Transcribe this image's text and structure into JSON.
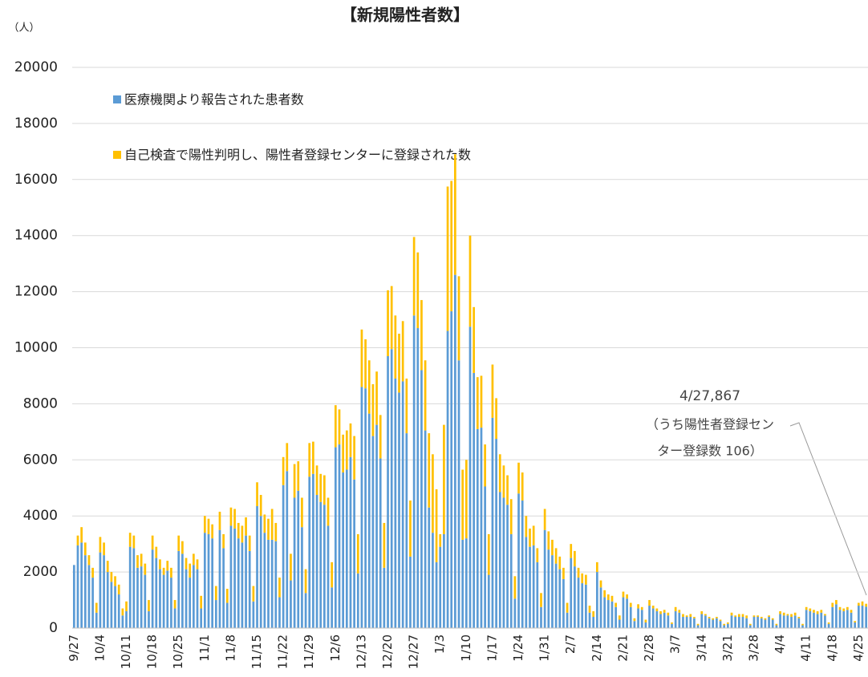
{
  "chart_data": {
    "type": "bar",
    "stacked": true,
    "title": "【新規陽性者数】",
    "y_label": "（人）",
    "categories": [
      "9/27",
      null,
      null,
      null,
      null,
      null,
      null,
      "10/4",
      null,
      null,
      null,
      null,
      null,
      null,
      "10/11",
      null,
      null,
      null,
      null,
      null,
      null,
      "10/18",
      null,
      null,
      null,
      null,
      null,
      null,
      "10/25",
      null,
      null,
      null,
      null,
      null,
      null,
      "11/1",
      null,
      null,
      null,
      null,
      null,
      null,
      "11/8",
      null,
      null,
      null,
      null,
      null,
      null,
      "11/15",
      null,
      null,
      null,
      null,
      null,
      null,
      "11/22",
      null,
      null,
      null,
      null,
      null,
      null,
      "11/29",
      null,
      null,
      null,
      null,
      null,
      null,
      "12/6",
      null,
      null,
      null,
      null,
      null,
      null,
      "12/13",
      null,
      null,
      null,
      null,
      null,
      null,
      "12/20",
      null,
      null,
      null,
      null,
      null,
      null,
      "12/27",
      null,
      null,
      null,
      null,
      null,
      null,
      "1/3",
      null,
      null,
      null,
      null,
      null,
      null,
      "1/10",
      null,
      null,
      null,
      null,
      null,
      null,
      "1/17",
      null,
      null,
      null,
      null,
      null,
      null,
      "1/24",
      null,
      null,
      null,
      null,
      null,
      null,
      "1/31",
      null,
      null,
      null,
      null,
      null,
      null,
      "2/7",
      null,
      null,
      null,
      null,
      null,
      null,
      "2/14",
      null,
      null,
      null,
      null,
      null,
      null,
      "2/21",
      null,
      null,
      null,
      null,
      null,
      null,
      "2/28",
      null,
      null,
      null,
      null,
      null,
      null,
      "3/7",
      null,
      null,
      null,
      null,
      null,
      null,
      "3/14",
      null,
      null,
      null,
      null,
      null,
      null,
      "3/21",
      null,
      null,
      null,
      null,
      null,
      null,
      "3/28",
      null,
      null,
      null,
      null,
      null,
      null,
      "4/4",
      null,
      null,
      null,
      null,
      null,
      null,
      "4/11",
      null,
      null,
      null,
      null,
      null,
      null,
      "4/18",
      null,
      null,
      null,
      null,
      null,
      null,
      "4/25",
      null,
      null
    ],
    "series": [
      {
        "name": "医療機関より報告された患者数",
        "color": "#5b9bd5",
        "values": [
          2250,
          2950,
          3050,
          2600,
          2250,
          1800,
          550,
          2700,
          2600,
          2000,
          1650,
          1500,
          1200,
          450,
          600,
          2900,
          2850,
          2150,
          2200,
          1900,
          600,
          2800,
          2500,
          2100,
          1900,
          2050,
          1800,
          700,
          2750,
          2650,
          2100,
          1800,
          2250,
          2100,
          700,
          3400,
          3350,
          3200,
          1000,
          3500,
          2850,
          900,
          3650,
          3550,
          3200,
          3050,
          3300,
          2750,
          950,
          4350,
          4000,
          3400,
          3150,
          3150,
          3100,
          1100,
          5100,
          5600,
          1700,
          4650,
          4900,
          3600,
          1250,
          5400,
          5500,
          4750,
          4500,
          4400,
          3650,
          1450,
          6450,
          6550,
          5550,
          5650,
          6100,
          5300,
          1950,
          8600,
          8550,
          7650,
          6850,
          7250,
          6050,
          2150,
          9700,
          9950,
          8900,
          8400,
          8800,
          6950,
          2550,
          11150,
          10700,
          9200,
          7050,
          4300,
          3400,
          2350,
          2900,
          3350,
          10600,
          11300,
          12600,
          9550,
          3150,
          3200,
          10750,
          9100,
          7100,
          7150,
          5050,
          1900,
          7500,
          6750,
          4850,
          4650,
          4400,
          3350,
          1050,
          4800,
          4550,
          3250,
          2900,
          2950,
          2350,
          750,
          3500,
          2800,
          2600,
          2300,
          2100,
          1750,
          550,
          2500,
          2200,
          1800,
          1600,
          1550,
          550,
          400,
          2000,
          1450,
          1100,
          1000,
          950,
          750,
          300,
          1100,
          1050,
          750,
          250,
          700,
          650,
          200,
          800,
          700,
          600,
          500,
          550,
          450,
          150,
          600,
          550,
          400,
          400,
          400,
          350,
          100,
          500,
          450,
          350,
          300,
          350,
          250,
          100,
          150,
          450,
          400,
          400,
          400,
          350,
          100,
          400,
          400,
          350,
          300,
          400,
          300,
          100,
          500,
          450,
          450,
          400,
          450,
          350,
          100,
          650,
          600,
          550,
          500,
          550,
          450,
          150,
          750,
          850,
          650,
          600,
          650,
          550,
          200,
          800,
          800,
          761
        ]
      },
      {
        "name": "自己検査で陽性判明し、陽性者登録センターに登録された数",
        "color": "#ffc000",
        "values": [
          0,
          350,
          550,
          450,
          350,
          350,
          350,
          550,
          450,
          400,
          350,
          350,
          350,
          250,
          350,
          500,
          450,
          450,
          450,
          400,
          400,
          500,
          400,
          350,
          250,
          350,
          350,
          300,
          550,
          450,
          400,
          500,
          400,
          350,
          450,
          600,
          550,
          500,
          500,
          650,
          500,
          500,
          650,
          700,
          550,
          600,
          650,
          550,
          550,
          850,
          750,
          650,
          750,
          1100,
          650,
          700,
          1000,
          1000,
          950,
          1200,
          1050,
          1050,
          850,
          1200,
          1150,
          1050,
          1000,
          1050,
          1000,
          900,
          1500,
          1250,
          1350,
          1400,
          1200,
          1550,
          1400,
          2050,
          1750,
          1900,
          1850,
          1900,
          1550,
          1600,
          2350,
          2250,
          2250,
          2100,
          2150,
          1950,
          2000,
          2800,
          2700,
          2500,
          2500,
          2650,
          2800,
          2600,
          450,
          3900,
          5150,
          4650,
          4300,
          3000,
          2500,
          2800,
          3250,
          2350,
          1850,
          1850,
          1500,
          1450,
          1900,
          1450,
          1350,
          1150,
          1050,
          1250,
          800,
          1100,
          1000,
          750,
          650,
          700,
          500,
          500,
          750,
          650,
          550,
          550,
          450,
          400,
          350,
          500,
          550,
          350,
          350,
          350,
          250,
          200,
          350,
          250,
          250,
          200,
          200,
          150,
          150,
          200,
          150,
          150,
          100,
          150,
          100,
          100,
          200,
          100,
          100,
          100,
          100,
          100,
          50,
          150,
          100,
          100,
          50,
          100,
          50,
          50,
          100,
          50,
          50,
          50,
          50,
          50,
          50,
          50,
          100,
          50,
          100,
          100,
          100,
          50,
          50,
          50,
          50,
          50,
          50,
          50,
          50,
          100,
          100,
          50,
          100,
          100,
          50,
          50,
          100,
          100,
          100,
          100,
          100,
          50,
          50,
          150,
          150,
          100,
          100,
          100,
          100,
          50,
          100,
          150,
          106
        ]
      }
    ],
    "ylim": [
      0,
      20000
    ],
    "yticks": [
      0,
      2000,
      4000,
      6000,
      8000,
      10000,
      12000,
      14000,
      16000,
      18000,
      20000
    ],
    "grid": true,
    "annotation": [
      "4/27,867",
      "（うち陽性者登録セン",
      "ター登録数 106）"
    ]
  }
}
